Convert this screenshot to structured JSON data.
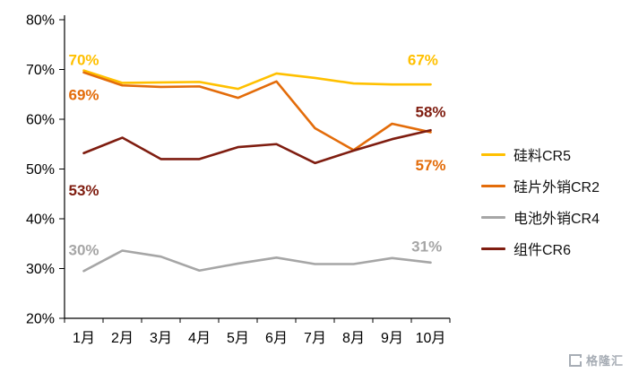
{
  "chart_data": {
    "type": "line",
    "categories": [
      "1月",
      "2月",
      "3月",
      "4月",
      "5月",
      "6月",
      "7月",
      "8月",
      "9月",
      "10月"
    ],
    "y_axis": {
      "min": 20,
      "max": 80,
      "step": 10,
      "format": "percent"
    },
    "y_ticks": [
      "80%",
      "70%",
      "60%",
      "50%",
      "40%",
      "30%",
      "20%"
    ],
    "grid": "off",
    "legend_position": "right",
    "series": [
      {
        "name": "硅料CR5",
        "color": "#FFC000",
        "values": [
          69.8,
          67.3,
          67.4,
          67.5,
          66.1,
          69.2,
          68.3,
          67.2,
          67.0,
          67.0
        ]
      },
      {
        "name": "硅片外销CR2",
        "color": "#E36C0A",
        "values": [
          69.4,
          66.8,
          66.5,
          66.6,
          64.3,
          67.6,
          58.2,
          53.8,
          59.1,
          57.4
        ]
      },
      {
        "name": "电池外销CR4",
        "color": "#A6A6A6",
        "values": [
          29.5,
          33.6,
          32.4,
          29.6,
          31.0,
          32.2,
          30.9,
          30.9,
          32.1,
          31.2
        ]
      },
      {
        "name": "组件CR6",
        "color": "#7F1D10",
        "values": [
          53.2,
          56.3,
          52.0,
          52.0,
          54.4,
          55.0,
          51.2,
          53.7,
          56.0,
          57.8
        ]
      }
    ],
    "annotations": [
      {
        "text": "70%",
        "series": 0,
        "month": 0,
        "value": 72.0
      },
      {
        "text": "69%",
        "series": 1,
        "month": 0,
        "value": 65.0
      },
      {
        "text": "53%",
        "series": 3,
        "month": 0,
        "value": 45.8
      },
      {
        "text": "30%",
        "series": 2,
        "month": 0,
        "value": 33.8
      },
      {
        "text": "67%",
        "series": 0,
        "month": 8.8,
        "value": 72.0
      },
      {
        "text": "58%",
        "series": 3,
        "month": 9,
        "value": 61.5
      },
      {
        "text": "57%",
        "series": 1,
        "month": 9,
        "value": 50.8
      },
      {
        "text": "31%",
        "series": 2,
        "month": 8.9,
        "value": 34.5
      }
    ]
  },
  "watermark": {
    "text": "格隆汇"
  }
}
